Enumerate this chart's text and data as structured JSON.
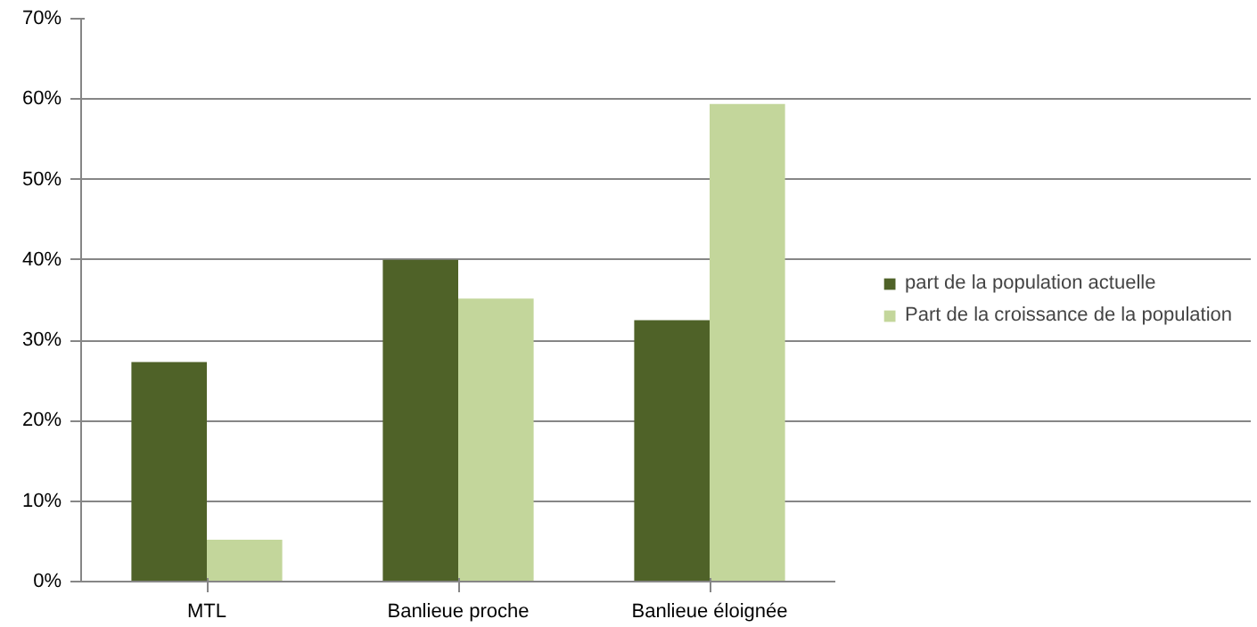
{
  "chart_data": {
    "type": "bar",
    "categories": [
      "MTL",
      "Banlieue proche",
      "Banlieue éloignée"
    ],
    "series": [
      {
        "name": "part de la population actuelle",
        "color": "#4f6228",
        "values": [
          27.3,
          40.0,
          32.5
        ]
      },
      {
        "name": "Part de la croissance de la population",
        "color": "#c3d69b",
        "values": [
          5.2,
          35.2,
          59.4
        ]
      }
    ],
    "ylim": [
      0,
      70
    ],
    "yticks": [
      {
        "value": 0,
        "label": "0%"
      },
      {
        "value": 10,
        "label": "10%"
      },
      {
        "value": 20,
        "label": "20%"
      },
      {
        "value": 30,
        "label": "30%"
      },
      {
        "value": 40,
        "label": "40%"
      },
      {
        "value": 50,
        "label": "50%"
      },
      {
        "value": 60,
        "label": "60%"
      },
      {
        "value": 70,
        "label": "70%"
      }
    ],
    "grid": "y",
    "legend": "right"
  }
}
